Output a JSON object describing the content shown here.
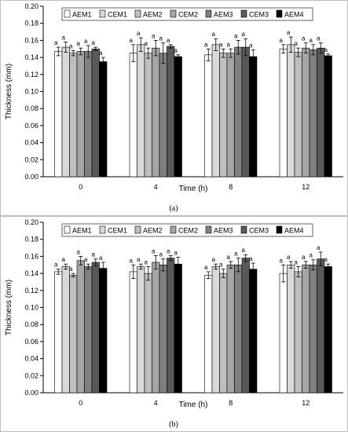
{
  "colors": {
    "AEM1": "#ffffff",
    "CEM1": "#d9d9d9",
    "AEM2": "#bfbfbf",
    "CEM2": "#a6a6a6",
    "AEM3": "#808080",
    "CEM3": "#595959",
    "AEM4": "#000000"
  },
  "chart_data": [
    {
      "type": "bar",
      "caption": "(a)",
      "xlabel": "Time (h)",
      "ylabel": "Thickness (mm)",
      "ylim": [
        0,
        0.2
      ],
      "yticks": [
        "0.00",
        "0.02",
        "0.04",
        "0.06",
        "0.08",
        "0.10",
        "0.12",
        "0.14",
        "0.16",
        "0.18",
        "0.20"
      ],
      "categories": [
        "0",
        "4",
        "8",
        "12"
      ],
      "legend_position": "top",
      "grid": false,
      "significance_label": "a",
      "series": [
        {
          "name": "AEM1",
          "values": [
            0.147,
            0.145,
            0.143,
            0.15
          ],
          "errors": [
            0.005,
            0.01,
            0.007,
            0.005
          ]
        },
        {
          "name": "CEM1",
          "values": [
            0.152,
            0.155,
            0.155,
            0.155
          ],
          "errors": [
            0.006,
            0.008,
            0.007,
            0.009
          ]
        },
        {
          "name": "AEM2",
          "values": [
            0.145,
            0.145,
            0.145,
            0.146
          ],
          "errors": [
            0.003,
            0.006,
            0.005,
            0.005
          ]
        },
        {
          "name": "CEM2",
          "values": [
            0.147,
            0.151,
            0.145,
            0.151
          ],
          "errors": [
            0.004,
            0.009,
            0.005,
            0.006
          ]
        },
        {
          "name": "AEM3",
          "values": [
            0.147,
            0.145,
            0.152,
            0.149
          ],
          "errors": [
            0.007,
            0.012,
            0.008,
            0.006
          ]
        },
        {
          "name": "CEM3",
          "values": [
            0.15,
            0.153,
            0.152,
            0.151
          ],
          "errors": [
            0.002,
            0.002,
            0.01,
            0.006
          ]
        },
        {
          "name": "AEM4",
          "values": [
            0.135,
            0.141,
            0.141,
            0.142
          ],
          "errors": [
            0.005,
            0.002,
            0.008,
            0.002
          ]
        }
      ]
    },
    {
      "type": "bar",
      "caption": "(b)",
      "xlabel": "Time (h)",
      "ylabel": "Thickness (mm)",
      "ylim": [
        0,
        0.2
      ],
      "yticks": [
        "0.00",
        "0.02",
        "0.04",
        "0.06",
        "0.08",
        "0.10",
        "0.12",
        "0.14",
        "0.16",
        "0.18",
        "0.20"
      ],
      "categories": [
        "0",
        "4",
        "8",
        "12"
      ],
      "legend_position": "top",
      "grid": false,
      "significance_label": "a",
      "series": [
        {
          "name": "AEM1",
          "values": [
            0.142,
            0.142,
            0.138,
            0.14
          ],
          "errors": [
            0.003,
            0.008,
            0.004,
            0.01
          ]
        },
        {
          "name": "CEM1",
          "values": [
            0.148,
            0.148,
            0.148,
            0.15
          ],
          "errors": [
            0.003,
            0.003,
            0.003,
            0.004
          ]
        },
        {
          "name": "AEM2",
          "values": [
            0.138,
            0.14,
            0.14,
            0.142
          ],
          "errors": [
            0.002,
            0.008,
            0.005,
            0.006
          ]
        },
        {
          "name": "CEM2",
          "values": [
            0.155,
            0.153,
            0.15,
            0.15
          ],
          "errors": [
            0.005,
            0.008,
            0.004,
            0.004
          ]
        },
        {
          "name": "AEM3",
          "values": [
            0.148,
            0.15,
            0.15,
            0.15
          ],
          "errors": [
            0.003,
            0.007,
            0.008,
            0.006
          ]
        },
        {
          "name": "CEM3",
          "values": [
            0.153,
            0.158,
            0.158,
            0.157
          ],
          "errors": [
            0.004,
            0.003,
            0.004,
            0.008
          ]
        },
        {
          "name": "AEM4",
          "values": [
            0.146,
            0.151,
            0.145,
            0.148
          ],
          "errors": [
            0.007,
            0.008,
            0.007,
            0.003
          ]
        }
      ]
    }
  ]
}
